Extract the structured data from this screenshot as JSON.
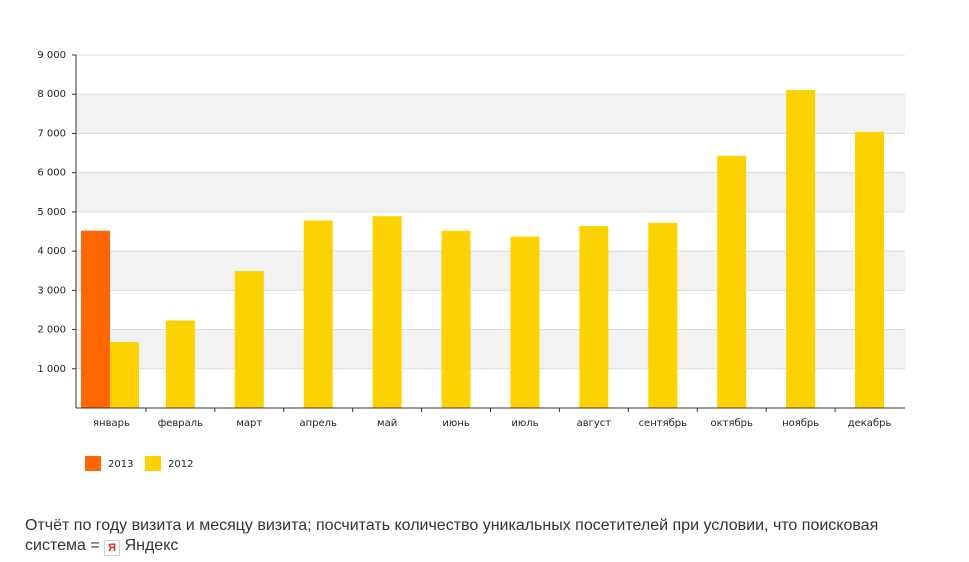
{
  "chart_data": {
    "type": "bar",
    "categories": [
      "январь",
      "февраль",
      "март",
      "апрель",
      "май",
      "июнь",
      "июль",
      "август",
      "сентябрь",
      "октябрь",
      "ноябрь",
      "декабрь"
    ],
    "series": [
      {
        "name": "2013",
        "color": "#ff6600",
        "values": [
          4520,
          null,
          null,
          null,
          null,
          null,
          null,
          null,
          null,
          null,
          null,
          null
        ]
      },
      {
        "name": "2012",
        "color": "#fcd200",
        "values": [
          1680,
          2230,
          3490,
          4780,
          4890,
          4520,
          4370,
          4640,
          4720,
          6430,
          8110,
          7040
        ]
      }
    ],
    "y_ticks": [
      "1 000",
      "2 000",
      "3 000",
      "4 000",
      "5 000",
      "6 000",
      "7 000",
      "8 000",
      "9 000"
    ],
    "ylim": [
      0,
      9000
    ],
    "grid": true,
    "legend_position": "bottom-left",
    "title": "",
    "xlabel": "",
    "ylabel": ""
  },
  "caption": {
    "text": "Отчёт по году визита и месяцу визита; посчитать количество уникальных посетителей при условии, что поисковая система =",
    "search_engine": "Яндекс",
    "icon": "yandex-icon",
    "icon_letter": "Я"
  }
}
